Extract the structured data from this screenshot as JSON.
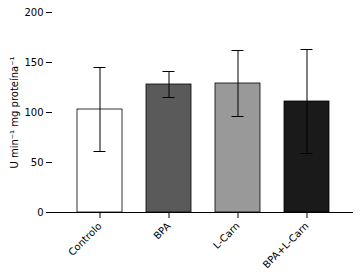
{
  "chart_data": {
    "type": "bar",
    "categories": [
      "Controlo",
      "BPA",
      "L-Carn",
      "BPA+L-Carn"
    ],
    "values": [
      103,
      128,
      129,
      111
    ],
    "errors": [
      42,
      13,
      33,
      52
    ],
    "colors": [
      "#ffffff",
      "#5a5a5a",
      "#999999",
      "#1a1a1a"
    ],
    "ylabel": "U min⁻¹ mg proteína⁻¹",
    "ylim": [
      0,
      200
    ],
    "yticks": [
      0,
      50,
      100,
      150,
      200
    ],
    "grid": false
  }
}
